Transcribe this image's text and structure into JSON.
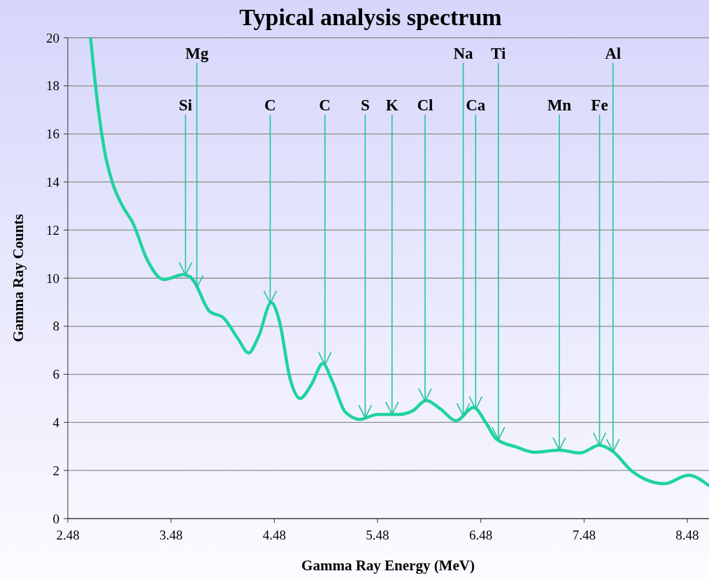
{
  "chart_data": {
    "type": "line",
    "title": "Typical analysis spectrum",
    "xlabel": "Gamma Ray Energy (MeV)",
    "ylabel": "Gamma Ray Counts",
    "xlim": [
      2.48,
      8.69
    ],
    "xticks": [
      2.48,
      3.48,
      4.48,
      5.48,
      6.48,
      7.48,
      8.48
    ],
    "ylim": [
      0,
      20
    ],
    "yticks": [
      0,
      2,
      4,
      6,
      8,
      10,
      12,
      14,
      16,
      18,
      20
    ],
    "grid": "y",
    "series": [
      {
        "color": "#1fd39f",
        "x": [
          2.7,
          2.77,
          2.84,
          2.91,
          3.01,
          3.11,
          3.245,
          3.41,
          3.6,
          3.69,
          3.85,
          3.99,
          4.13,
          4.23,
          4.33,
          4.45,
          4.53,
          4.63,
          4.73,
          4.84,
          4.95,
          5.04,
          5.17,
          5.31,
          5.48,
          5.68,
          5.82,
          5.95,
          6.09,
          6.24,
          6.41,
          6.53,
          6.63,
          6.83,
          7.0,
          7.24,
          7.44,
          7.63,
          7.75,
          7.95,
          8.26,
          8.49,
          8.69
        ],
        "values": [
          20,
          17.2,
          15.2,
          14.0,
          13.0,
          12.3,
          10.8,
          9.94,
          10.15,
          9.94,
          8.63,
          8.34,
          7.47,
          6.89,
          7.6,
          8.98,
          8.2,
          5.87,
          5.0,
          5.58,
          6.45,
          5.73,
          4.42,
          4.13,
          4.33,
          4.33,
          4.48,
          4.91,
          4.56,
          4.07,
          4.62,
          3.98,
          3.31,
          2.97,
          2.76,
          2.85,
          2.73,
          3.05,
          2.82,
          1.95,
          1.45,
          1.8,
          1.37
        ]
      }
    ],
    "annotations": [
      {
        "text": "Si",
        "x": 3.62,
        "y": 10.13
      },
      {
        "text": "Mg",
        "x": 3.73,
        "y": 9.6
      },
      {
        "text": "C",
        "x": 4.44,
        "y": 8.95
      },
      {
        "text": "C",
        "x": 4.97,
        "y": 6.4
      },
      {
        "text": "S",
        "x": 5.36,
        "y": 4.19
      },
      {
        "text": "K",
        "x": 5.62,
        "y": 4.33
      },
      {
        "text": "Cl",
        "x": 5.94,
        "y": 4.88
      },
      {
        "text": "Na",
        "x": 6.31,
        "y": 4.27
      },
      {
        "text": "Ca",
        "x": 6.43,
        "y": 4.55
      },
      {
        "text": "Ti",
        "x": 6.65,
        "y": 3.28
      },
      {
        "text": "Mn",
        "x": 7.24,
        "y": 2.85
      },
      {
        "text": "Fe",
        "x": 7.63,
        "y": 3.05
      },
      {
        "text": "Al",
        "x": 7.76,
        "y": 2.78
      }
    ]
  }
}
